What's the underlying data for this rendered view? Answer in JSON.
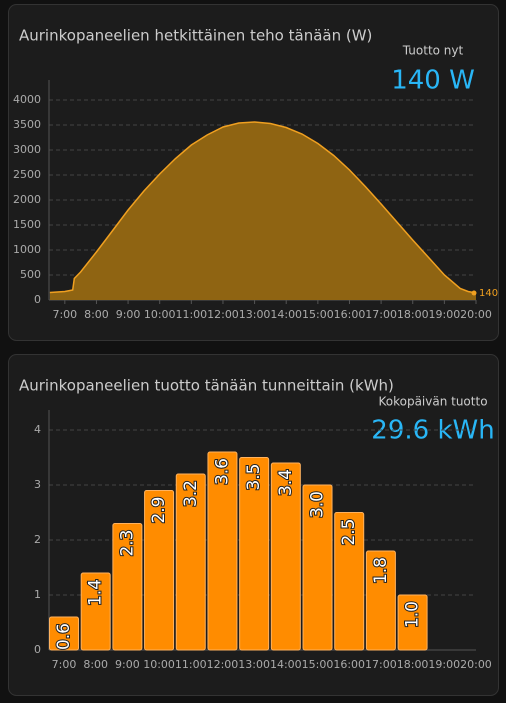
{
  "chart_data": [
    {
      "type": "area",
      "title": "Aurinkopaneelien hetkittäinen teho tänään (W)",
      "stat_label": "Tuotto nyt",
      "stat_value": "140 W",
      "color": "#f0a020",
      "fill": "#8f6412",
      "x": [
        6.53,
        7.0,
        7.25,
        7.3,
        7.5,
        8.0,
        8.5,
        9.0,
        9.5,
        10.0,
        10.5,
        11.0,
        11.5,
        12.0,
        12.5,
        13.0,
        13.5,
        14.0,
        14.5,
        15.0,
        15.5,
        16.0,
        16.5,
        17.0,
        17.5,
        18.0,
        18.5,
        19.0,
        19.5,
        19.75,
        20.0
      ],
      "values": [
        150,
        170,
        200,
        430,
        560,
        960,
        1380,
        1800,
        2180,
        2520,
        2830,
        3100,
        3300,
        3460,
        3540,
        3560,
        3530,
        3450,
        3320,
        3130,
        2890,
        2600,
        2270,
        1920,
        1560,
        1200,
        850,
        500,
        230,
        170,
        140
      ],
      "xlim": [
        6.5,
        20
      ],
      "xticks": [
        {
          "value": 7,
          "label": "7:00"
        },
        {
          "value": 8,
          "label": "8:00"
        },
        {
          "value": 9,
          "label": "9:00"
        },
        {
          "value": 10,
          "label": "10:00"
        },
        {
          "value": 11,
          "label": "11:00"
        },
        {
          "value": 12,
          "label": "12:00"
        },
        {
          "value": 13,
          "label": "13:00"
        },
        {
          "value": 14,
          "label": "14:00"
        },
        {
          "value": 15,
          "label": "15:00"
        },
        {
          "value": 16,
          "label": "16:00"
        },
        {
          "value": 17,
          "label": "17:00"
        },
        {
          "value": 18,
          "label": "18:00"
        },
        {
          "value": 19,
          "label": "19:00"
        },
        {
          "value": 20,
          "label": "20:00"
        }
      ],
      "ylim": [
        0,
        4000
      ],
      "yticks": [
        0,
        500,
        1000,
        1500,
        2000,
        2500,
        3000,
        3500,
        4000
      ],
      "grid": true
    },
    {
      "type": "bar",
      "title": "Aurinkopaneelien tuotto tänään tunneittain (kWh)",
      "stat_label": "Kokopäivän tuotto",
      "stat_value": "29.6 kWh",
      "color": "#ff8c00",
      "categories": [
        "7:00",
        "8:00",
        "9:00",
        "10:00",
        "11:00",
        "12:00",
        "13:00",
        "14:00",
        "15:00",
        "16:00",
        "17:00",
        "18:00",
        "19:00",
        "20:00"
      ],
      "values": [
        0.6,
        1.4,
        2.3,
        2.9,
        3.2,
        3.6,
        3.5,
        3.4,
        3.0,
        2.5,
        1.8,
        1.0,
        null,
        null
      ],
      "value_labels": [
        "0.6",
        "1.4",
        "2.3",
        "2.9",
        "3.2",
        "3.6",
        "3.5",
        "3.4",
        "3.0",
        "2.5",
        "1.8",
        "1.0",
        null,
        null
      ],
      "ylim": [
        0,
        4
      ],
      "yticks": [
        0,
        1,
        2,
        3,
        4
      ],
      "grid": true
    }
  ]
}
